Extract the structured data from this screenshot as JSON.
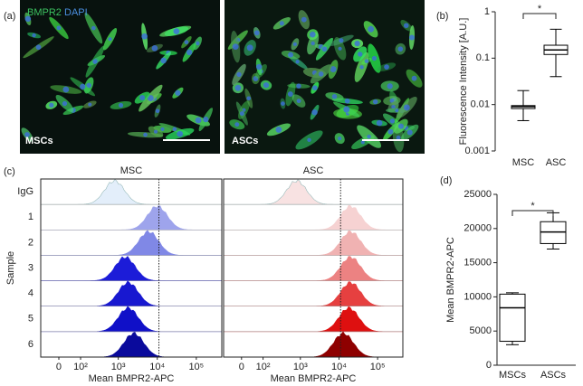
{
  "micrographs": {
    "label": "(a)",
    "stains": [
      "BMPR2",
      "DAPI"
    ],
    "stain_colors": [
      "#3cc060",
      "#4a8fe0"
    ],
    "images": [
      "MSCs",
      "ASCs"
    ]
  },
  "chart_data": [
    {
      "type": "box",
      "label": "(b)",
      "ylabel": "Fluorescence Intensity [A.U.]",
      "yscale": "log",
      "ylim": [
        0.001,
        1
      ],
      "yticks": [
        0.001,
        0.01,
        0.1,
        1
      ],
      "categories": [
        "MSC",
        "ASC"
      ],
      "values": [
        [
          0.0045,
          0.0082,
          0.009,
          0.0095,
          0.02
        ],
        [
          0.04,
          0.12,
          0.15,
          0.19,
          0.42
        ]
      ],
      "color": "#000000",
      "annotation": "*"
    },
    {
      "type": "ridgeline",
      "label": "(c)",
      "title": "MSC",
      "ylabel": "Sample",
      "xlabel": "Mean BMPR2-APC",
      "xscale": "biexponential",
      "xlim": [
        -77,
        450000
      ],
      "xticks": [
        0,
        {
          "value": 100,
          "label": "10²"
        },
        {
          "value": 1000,
          "label": "10³"
        },
        {
          "value": 10000,
          "label": "10⁴"
        },
        {
          "value": 100000,
          "label": "10⁵"
        }
      ],
      "reference_line": 11000,
      "categories": [
        "IgG",
        "1",
        "2",
        "3",
        "4",
        "5",
        "6"
      ],
      "series": [
        {
          "color": "#e3eefa",
          "peak": 800
        },
        {
          "color": "#9ea4ec",
          "peak": 10000
        },
        {
          "color": "#8088e6",
          "peak": 6000
        },
        {
          "color": "#1c1cd8",
          "peak": 1500
        },
        {
          "color": "#1818d0",
          "peak": 1800
        },
        {
          "color": "#1010c8",
          "peak": 1800
        },
        {
          "color": "#0a0a9c",
          "peak": 2500
        }
      ]
    },
    {
      "type": "ridgeline",
      "title": "ASC",
      "xlabel": "Mean BMPR2-APC",
      "xscale": "biexponential",
      "xlim": [
        -77,
        450000
      ],
      "xticks": [
        0,
        {
          "value": 100,
          "label": "10²"
        },
        {
          "value": 1000,
          "label": "10³"
        },
        {
          "value": 10000,
          "label": "10⁴"
        },
        {
          "value": 100000,
          "label": "10⁵"
        }
      ],
      "reference_line": 11000,
      "series": [
        {
          "color": "#f8e2e2",
          "peak": 800
        },
        {
          "color": "#f6d2d2",
          "peak": 20000
        },
        {
          "color": "#f0b2b2",
          "peak": 20000
        },
        {
          "color": "#ec8282",
          "peak": 20000
        },
        {
          "color": "#e64040",
          "peak": 20000
        },
        {
          "color": "#de1010",
          "peak": 18000
        },
        {
          "color": "#8e0000",
          "peak": 13000
        }
      ]
    },
    {
      "type": "box",
      "label": "(d)",
      "ylabel": "Mean BMPR2-APC",
      "yscale": "linear",
      "ylim": [
        0,
        25000
      ],
      "yticks": [
        0,
        5000,
        10000,
        15000,
        20000,
        25000
      ],
      "categories": [
        "MSCs",
        "ASCs"
      ],
      "values": [
        [
          3000,
          3500,
          8400,
          10400,
          10600
        ],
        [
          17000,
          17800,
          19500,
          21000,
          22300
        ]
      ],
      "color": "#000000",
      "annotation": "*"
    }
  ]
}
